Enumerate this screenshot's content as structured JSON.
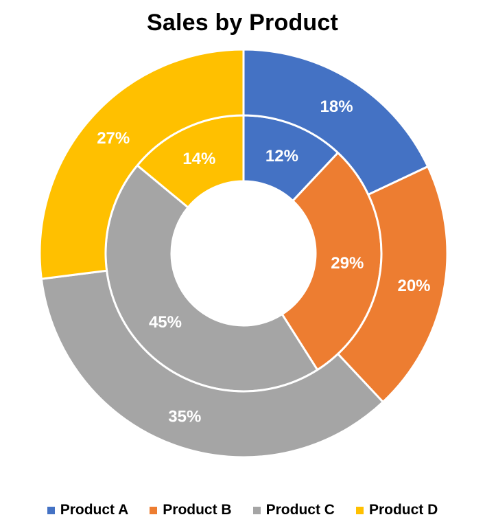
{
  "chart_data": {
    "type": "donut",
    "title": "Sales by Product",
    "categories": [
      "Product A",
      "Product B",
      "Product C",
      "Product D"
    ],
    "colors": [
      "#4472C4",
      "#ED7D31",
      "#A5A5A5",
      "#FFC000"
    ],
    "series": [
      {
        "values": [
          12,
          29,
          45,
          14
        ],
        "labels": [
          "12%",
          "29%",
          "45%",
          "14%"
        ]
      },
      {
        "values": [
          18,
          20,
          35,
          27
        ],
        "labels": [
          "18%",
          "20%",
          "35%",
          "27%"
        ]
      }
    ],
    "legend": {
      "position": "bottom"
    }
  }
}
